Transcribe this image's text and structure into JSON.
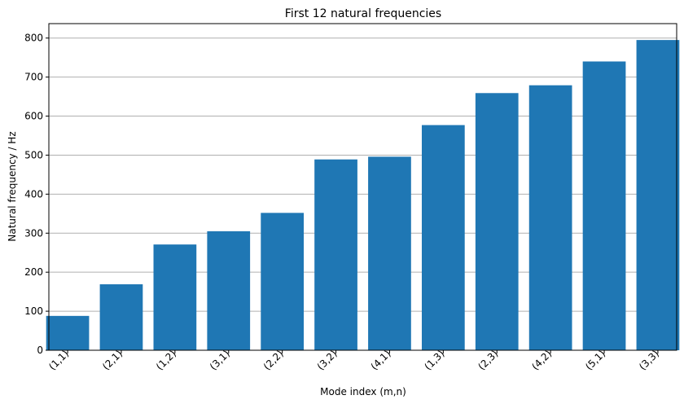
{
  "chart_data": {
    "type": "bar",
    "title": "First 12 natural frequencies",
    "xlabel": "Mode index (m,n)",
    "ylabel": "Natural frequency / Hz",
    "categories": [
      "(1,1)",
      "(2,1)",
      "(1,2)",
      "(3,1)",
      "(2,2)",
      "(3,2)",
      "(4,1)",
      "(1,3)",
      "(2,3)",
      "(4,2)",
      "(5,1)",
      "(3,3)"
    ],
    "values": [
      88,
      169,
      271,
      305,
      352,
      489,
      496,
      577,
      659,
      679,
      740,
      795
    ],
    "ylim": [
      0,
      837
    ],
    "yticks": [
      0,
      100,
      200,
      300,
      400,
      500,
      600,
      700,
      800
    ],
    "grid": "horizontal",
    "legend": "none",
    "bar_color": "#1f77b4",
    "grid_color": "#b0b0b0"
  }
}
